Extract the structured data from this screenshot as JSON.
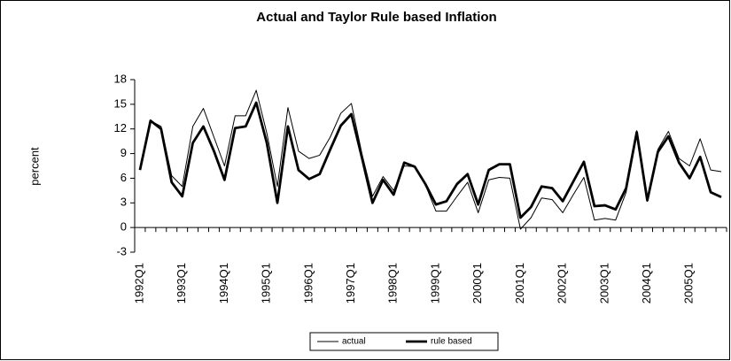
{
  "chart_data": {
    "type": "line",
    "title": "Actual and Taylor Rule based Inflation",
    "y_label": "percent",
    "categories": [
      "1992Q1",
      null,
      null,
      null,
      "1993Q1",
      null,
      null,
      null,
      "1994Q1",
      null,
      null,
      null,
      "1995Q1",
      null,
      null,
      null,
      "1996Q1",
      null,
      null,
      null,
      "1997Q1",
      null,
      null,
      null,
      "1998Q1",
      null,
      null,
      null,
      "1999Q1",
      null,
      null,
      null,
      "2000Q1",
      null,
      null,
      null,
      "2001Q1",
      null,
      null,
      null,
      "2002Q1",
      null,
      null,
      null,
      "2003Q1",
      null,
      null,
      null,
      "2004Q1",
      null,
      null,
      null,
      "2005Q1",
      null,
      null,
      null
    ],
    "series": [
      {
        "name": "actual",
        "color": "#000000",
        "values": [
          7,
          13,
          12.3,
          6.3,
          5,
          12.3,
          14.5,
          11,
          7.5,
          13.6,
          13.6,
          16.7,
          11.5,
          5,
          14.6,
          9.3,
          8.4,
          8.8,
          11,
          13.9,
          15.1,
          9,
          3.8,
          6.2,
          4.5,
          7.5,
          7.4,
          5.2,
          2,
          2,
          3.8,
          5.5,
          1.8,
          5.8,
          6.1,
          6,
          -0.2,
          1.2,
          3.6,
          3.4,
          1.8,
          4,
          6.1,
          0.9,
          1.1,
          0.9,
          4.3,
          11.8,
          3.2,
          9.5,
          11.7,
          8.4,
          7.5,
          10.8,
          7,
          6.8
        ]
      },
      {
        "name": "rule based",
        "color": "#000000",
        "values": [
          7,
          13,
          12,
          5.5,
          3.8,
          10.3,
          12.3,
          9.3,
          5.8,
          12.1,
          12.3,
          15.2,
          10.3,
          3,
          12.3,
          7,
          5.9,
          6.5,
          9.5,
          12.4,
          13.8,
          8.5,
          3,
          5.8,
          4,
          7.9,
          7.4,
          5.3,
          2.8,
          3.2,
          5.3,
          6.5,
          2.8,
          7,
          7.7,
          7.7,
          1.2,
          2.5,
          5,
          4.8,
          3.2,
          5.6,
          8,
          2.6,
          2.7,
          2.2,
          4.8,
          11.6,
          3.3,
          9.2,
          11.1,
          7.9,
          6,
          8.6,
          4.3,
          3.7
        ]
      }
    ],
    "ylim": [
      -3,
      18
    ],
    "yticks": [
      -3,
      0,
      3,
      6,
      9,
      12,
      15,
      18
    ],
    "grid": false,
    "legend": "bottom"
  }
}
